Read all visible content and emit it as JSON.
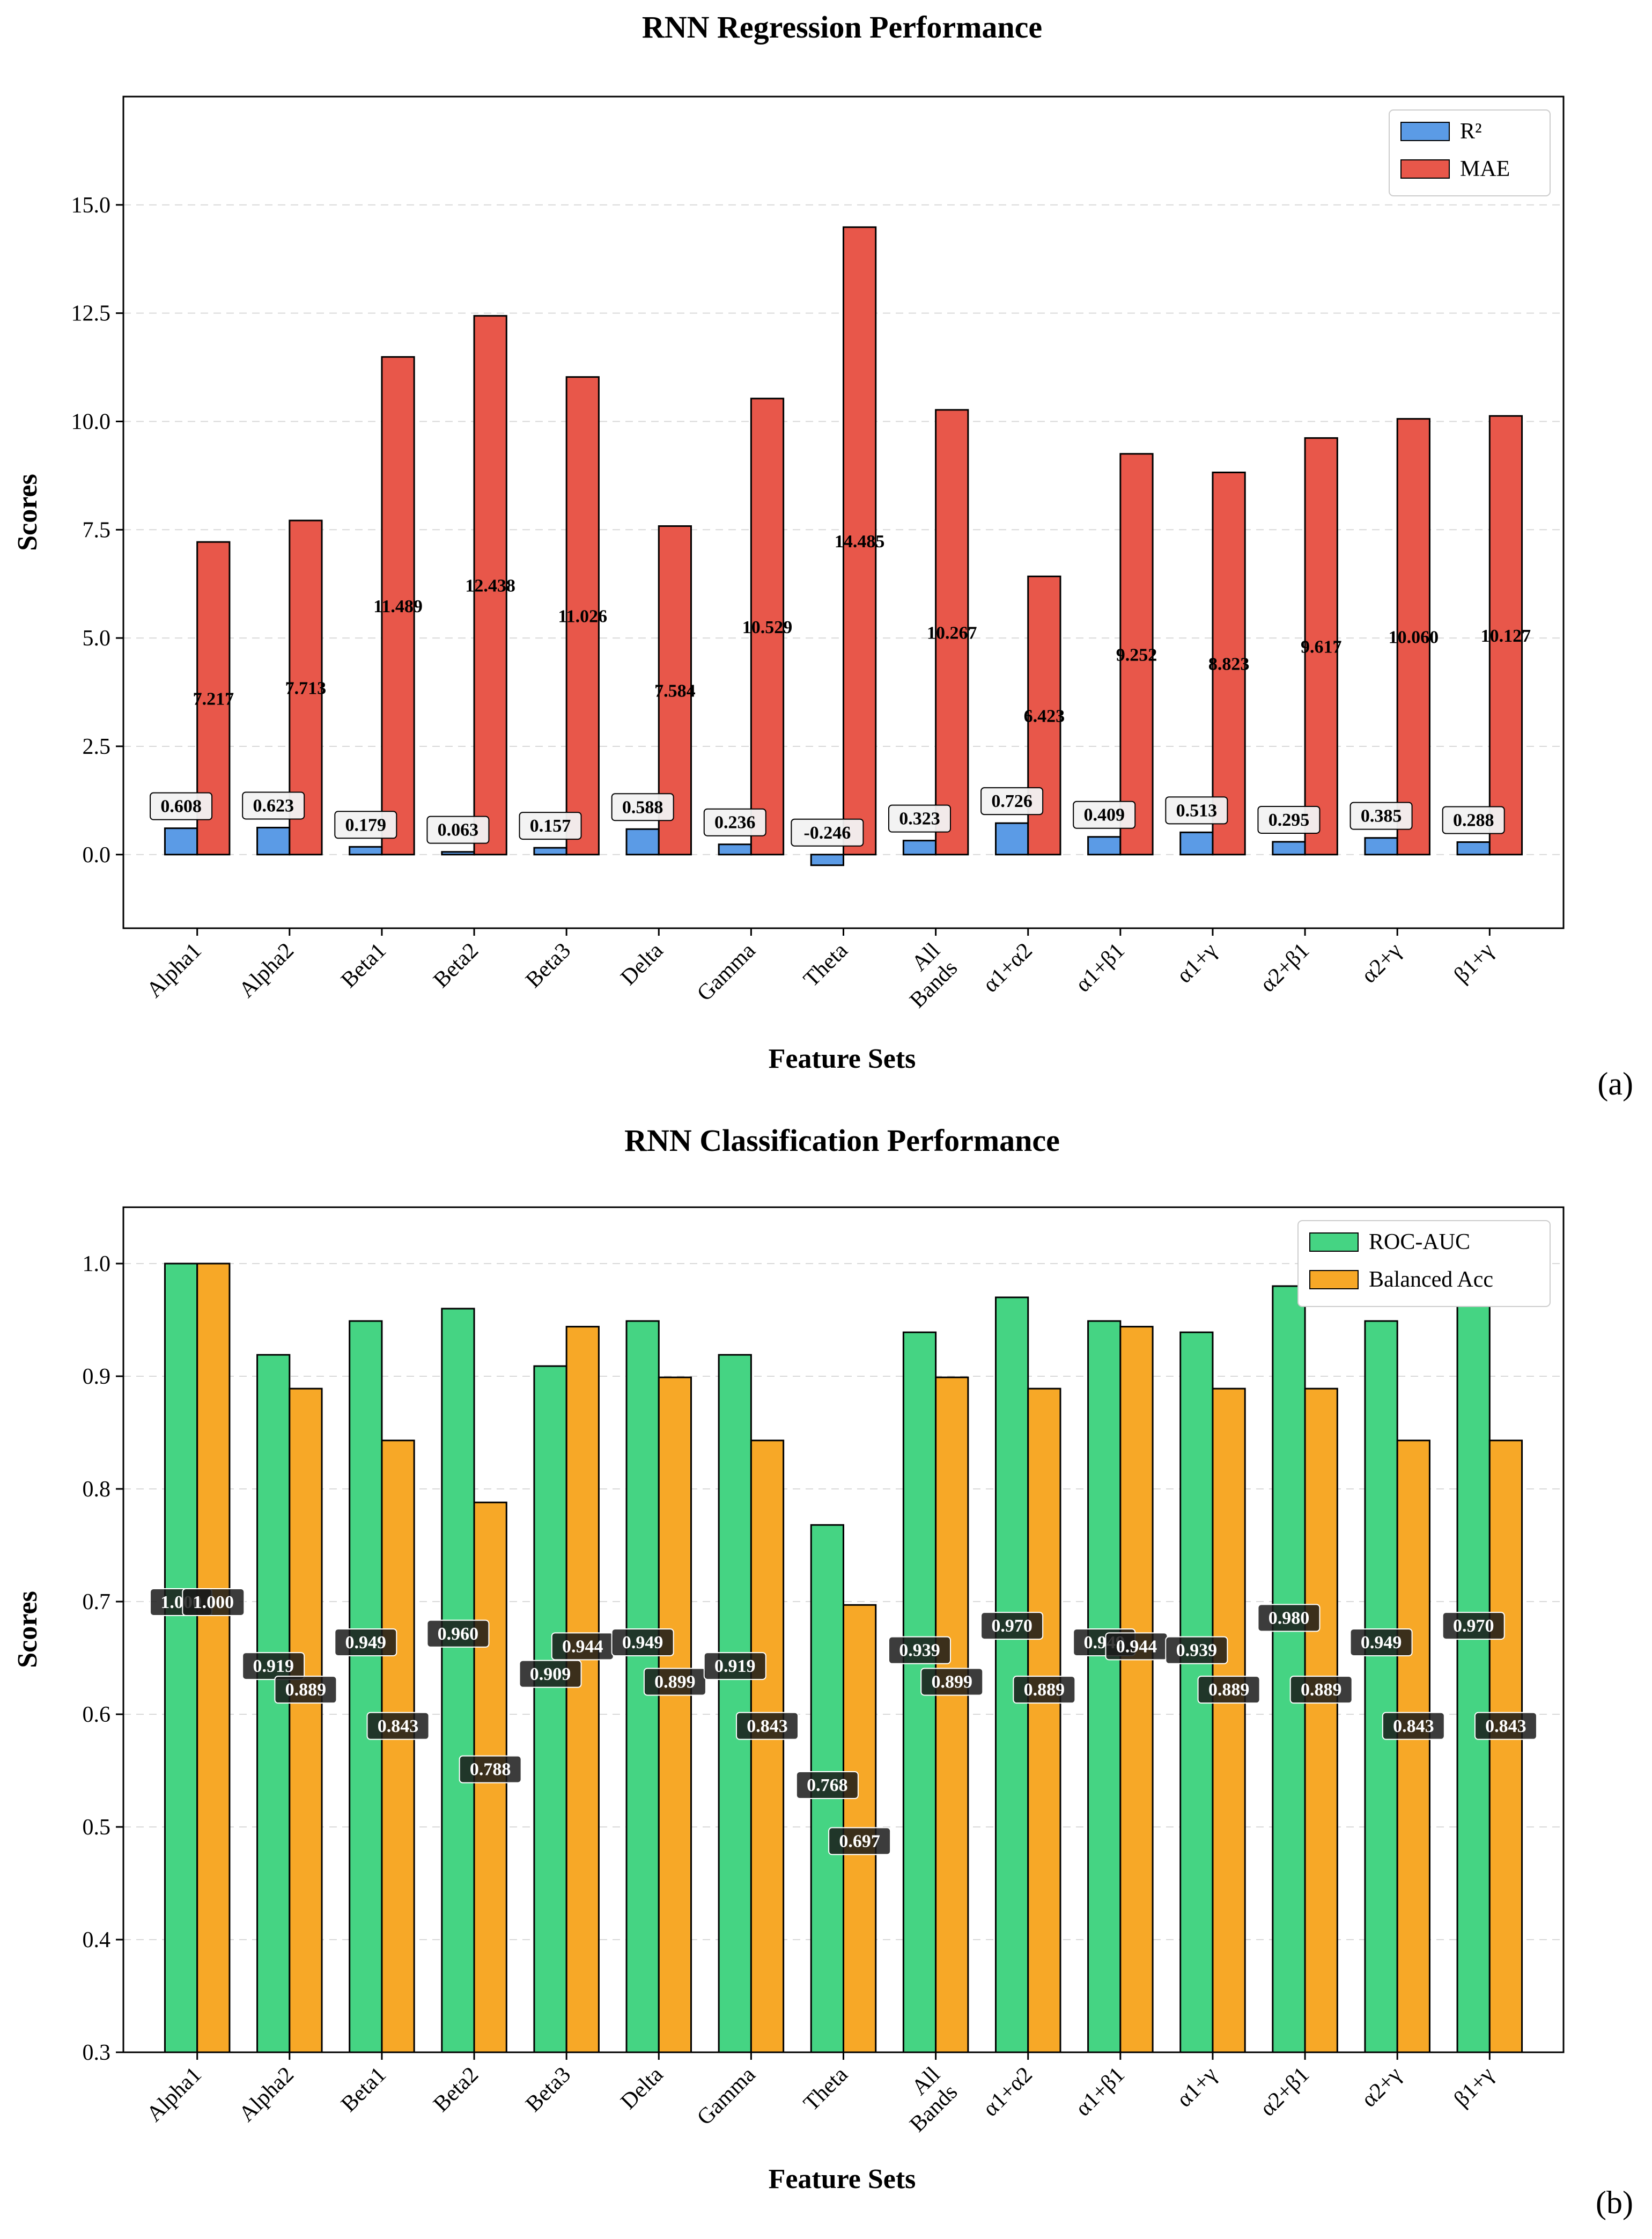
{
  "panel_labels": [
    "(a)",
    "(b)"
  ],
  "chart_data": [
    {
      "type": "bar",
      "title": "RNN Regression Performance",
      "xlabel": "Feature Sets",
      "ylabel": "Scores",
      "categories": [
        "Alpha1",
        "Alpha2",
        "Beta1",
        "Beta2",
        "Beta3",
        "Delta",
        "Gamma",
        "Theta",
        "All Bands",
        "α1+α2",
        "α1+β1",
        "α1+γ",
        "α2+β1",
        "α2+γ",
        "β1+γ"
      ],
      "series": [
        {
          "name": "R²",
          "color": "#5b9be6",
          "values": [
            0.608,
            0.623,
            0.179,
            0.063,
            0.157,
            0.588,
            0.236,
            -0.246,
            0.323,
            0.726,
            0.409,
            0.513,
            0.295,
            0.385,
            0.288
          ],
          "labels": [
            "0.608",
            "0.623",
            "0.179",
            "0.063",
            "0.157",
            "0.588",
            "0.236",
            "-0.246",
            "0.323",
            "0.726",
            "0.409",
            "0.513",
            "0.295",
            "0.385",
            "0.288"
          ]
        },
        {
          "name": "MAE",
          "color": "#e8574a",
          "values": [
            7.217,
            7.713,
            11.489,
            12.438,
            11.026,
            7.584,
            10.529,
            14.485,
            10.267,
            6.423,
            9.252,
            8.823,
            9.617,
            10.06,
            10.127
          ],
          "labels": [
            "7.217",
            "7.713",
            "11.489",
            "12.438",
            "11.026",
            "7.584",
            "10.529",
            "14.485",
            "10.267",
            "6.423",
            "9.252",
            "8.823",
            "9.617",
            "10.060",
            "10.127"
          ]
        }
      ],
      "ylim": [
        -1.7,
        17.5
      ],
      "yticks": [
        0.0,
        2.5,
        5.0,
        7.5,
        10.0,
        12.5,
        15.0
      ],
      "ytick_labels": [
        "0.0",
        "2.5",
        "5.0",
        "7.5",
        "10.0",
        "12.5",
        "15.0"
      ],
      "grid": true,
      "legend": "top-right"
    },
    {
      "type": "bar",
      "title": "RNN Classification Performance",
      "xlabel": "Feature Sets",
      "ylabel": "Scores",
      "categories": [
        "Alpha1",
        "Alpha2",
        "Beta1",
        "Beta2",
        "Beta3",
        "Delta",
        "Gamma",
        "Theta",
        "All Bands",
        "α1+α2",
        "α1+β1",
        "α1+γ",
        "α2+β1",
        "α2+γ",
        "β1+γ"
      ],
      "series": [
        {
          "name": "ROC-AUC",
          "color": "#45d483",
          "values": [
            1.0,
            0.919,
            0.949,
            0.96,
            0.909,
            0.949,
            0.919,
            0.768,
            0.939,
            0.97,
            0.949,
            0.939,
            0.98,
            0.949,
            0.97
          ],
          "labels": [
            "1.000",
            "0.919",
            "0.949",
            "0.960",
            "0.909",
            "0.949",
            "0.919",
            "0.768",
            "0.939",
            "0.970",
            "0.949",
            "0.939",
            "0.980",
            "0.949",
            "0.970"
          ]
        },
        {
          "name": "Balanced Acc",
          "color": "#f7a827",
          "values": [
            1.0,
            0.889,
            0.843,
            0.788,
            0.944,
            0.899,
            0.843,
            0.697,
            0.899,
            0.889,
            0.944,
            0.889,
            0.889,
            0.843,
            0.843
          ],
          "labels": [
            "1.000",
            "0.889",
            "0.843",
            "0.788",
            "0.944",
            "0.899",
            "0.843",
            "0.697",
            "0.899",
            "0.889",
            "0.944",
            "0.889",
            "0.889",
            "0.843",
            "0.843"
          ]
        }
      ],
      "ylim": [
        0.3,
        1.05
      ],
      "yticks": [
        0.3,
        0.4,
        0.5,
        0.6,
        0.7,
        0.8,
        0.9,
        1.0
      ],
      "ytick_labels": [
        "0.3",
        "0.4",
        "0.5",
        "0.6",
        "0.7",
        "0.8",
        "0.9",
        "1.0"
      ],
      "grid": true,
      "legend": "top-right"
    }
  ]
}
